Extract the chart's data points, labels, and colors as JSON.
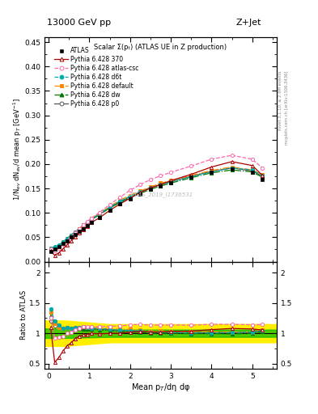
{
  "title_top": "13000 GeV pp",
  "title_right": "Z+Jet",
  "plot_title": "Scalar Σ(pₜ) (ATLAS UE in Z production)",
  "watermark": "ATLAS_2019_I1736531",
  "ylabel_main": "1/N$_{ev}$ dN$_{ev}$/d mean p$_{T}$ [GeV$^{-1}$]",
  "ylabel_ratio": "Ratio to ATLAS",
  "xlabel": "Mean p$_{T}$/dη dφ",
  "right_label1": "Rivet 3.1.10, ≥ 2.9M events",
  "right_label2": "mcplots.cern.ch [arXiv:1306.3436]",
  "ylim_main": [
    0,
    0.46
  ],
  "ylim_ratio": [
    0.42,
    2.18
  ],
  "yticks_main": [
    0.0,
    0.05,
    0.1,
    0.15,
    0.2,
    0.25,
    0.3,
    0.35,
    0.4,
    0.45
  ],
  "yticks_ratio": [
    0.5,
    1.0,
    1.5,
    2.0
  ],
  "xlim": [
    -0.1,
    5.6
  ],
  "x_atlas": [
    0.05,
    0.15,
    0.25,
    0.35,
    0.45,
    0.55,
    0.65,
    0.75,
    0.85,
    0.95,
    1.05,
    1.25,
    1.5,
    1.75,
    2.0,
    2.25,
    2.5,
    2.75,
    3.0,
    3.5,
    4.0,
    4.5,
    5.0,
    5.25
  ],
  "y_atlas": [
    0.02,
    0.025,
    0.03,
    0.037,
    0.043,
    0.05,
    0.056,
    0.062,
    0.068,
    0.074,
    0.08,
    0.091,
    0.105,
    0.118,
    0.128,
    0.138,
    0.148,
    0.155,
    0.161,
    0.173,
    0.183,
    0.19,
    0.184,
    0.168
  ],
  "x_py370": [
    0.05,
    0.15,
    0.25,
    0.35,
    0.45,
    0.55,
    0.65,
    0.75,
    0.85,
    0.95,
    1.05,
    1.25,
    1.5,
    1.75,
    2.0,
    2.25,
    2.5,
    2.75,
    3.0,
    3.5,
    4.0,
    4.5,
    5.0,
    5.25
  ],
  "y_py370": [
    0.022,
    0.013,
    0.018,
    0.026,
    0.034,
    0.042,
    0.051,
    0.059,
    0.066,
    0.072,
    0.08,
    0.09,
    0.105,
    0.118,
    0.13,
    0.142,
    0.151,
    0.158,
    0.166,
    0.179,
    0.194,
    0.205,
    0.197,
    0.177
  ],
  "x_pycsc": [
    0.05,
    0.15,
    0.25,
    0.35,
    0.45,
    0.55,
    0.65,
    0.75,
    0.85,
    0.95,
    1.05,
    1.25,
    1.5,
    1.75,
    2.0,
    2.25,
    2.5,
    2.75,
    3.0,
    3.5,
    4.0,
    4.5,
    5.0,
    5.25
  ],
  "y_pycsc": [
    0.025,
    0.023,
    0.028,
    0.035,
    0.043,
    0.051,
    0.059,
    0.067,
    0.075,
    0.082,
    0.089,
    0.101,
    0.117,
    0.132,
    0.146,
    0.158,
    0.168,
    0.176,
    0.183,
    0.196,
    0.21,
    0.218,
    0.21,
    0.192
  ],
  "x_pyd6t": [
    0.05,
    0.15,
    0.25,
    0.35,
    0.45,
    0.55,
    0.65,
    0.75,
    0.85,
    0.95,
    1.05,
    1.25,
    1.5,
    1.75,
    2.0,
    2.25,
    2.5,
    2.75,
    3.0,
    3.5,
    4.0,
    4.5,
    5.0,
    5.25
  ],
  "y_pyd6t": [
    0.028,
    0.03,
    0.034,
    0.04,
    0.047,
    0.054,
    0.061,
    0.068,
    0.075,
    0.081,
    0.087,
    0.098,
    0.112,
    0.124,
    0.134,
    0.143,
    0.151,
    0.158,
    0.163,
    0.174,
    0.184,
    0.192,
    0.188,
    0.176
  ],
  "x_pydef": [
    0.05,
    0.15,
    0.25,
    0.35,
    0.45,
    0.55,
    0.65,
    0.75,
    0.85,
    0.95,
    1.05,
    1.25,
    1.5,
    1.75,
    2.0,
    2.25,
    2.5,
    2.75,
    3.0,
    3.5,
    4.0,
    4.5,
    5.0,
    5.25
  ],
  "y_pydef": [
    0.027,
    0.029,
    0.033,
    0.04,
    0.047,
    0.054,
    0.061,
    0.068,
    0.075,
    0.081,
    0.088,
    0.099,
    0.113,
    0.126,
    0.136,
    0.145,
    0.153,
    0.161,
    0.166,
    0.177,
    0.187,
    0.194,
    0.188,
    0.178
  ],
  "x_pydw": [
    0.05,
    0.15,
    0.25,
    0.35,
    0.45,
    0.55,
    0.65,
    0.75,
    0.85,
    0.95,
    1.05,
    1.25,
    1.5,
    1.75,
    2.0,
    2.25,
    2.5,
    2.75,
    3.0,
    3.5,
    4.0,
    4.5,
    5.0,
    5.25
  ],
  "y_pydw": [
    0.026,
    0.029,
    0.034,
    0.04,
    0.047,
    0.054,
    0.061,
    0.067,
    0.073,
    0.079,
    0.086,
    0.096,
    0.11,
    0.121,
    0.131,
    0.14,
    0.148,
    0.155,
    0.161,
    0.172,
    0.182,
    0.188,
    0.184,
    0.173
  ],
  "x_pyp0": [
    0.05,
    0.15,
    0.25,
    0.35,
    0.45,
    0.55,
    0.65,
    0.75,
    0.85,
    0.95,
    1.05,
    1.25,
    1.5,
    1.75,
    2.0,
    2.25,
    2.5,
    2.75,
    3.0,
    3.5,
    4.0,
    4.5,
    5.0,
    5.25
  ],
  "y_pyp0": [
    0.024,
    0.028,
    0.033,
    0.04,
    0.047,
    0.054,
    0.061,
    0.067,
    0.073,
    0.079,
    0.086,
    0.097,
    0.111,
    0.123,
    0.133,
    0.142,
    0.151,
    0.158,
    0.164,
    0.175,
    0.185,
    0.192,
    0.186,
    0.175
  ],
  "color_atlas": "#000000",
  "color_370": "#aa0000",
  "color_csc": "#ff66aa",
  "color_d6t": "#00aaaa",
  "color_default": "#ff8800",
  "color_dw": "#007700",
  "color_p0": "#555555",
  "band_yellow": "#ffee00",
  "band_green": "#00bb00"
}
